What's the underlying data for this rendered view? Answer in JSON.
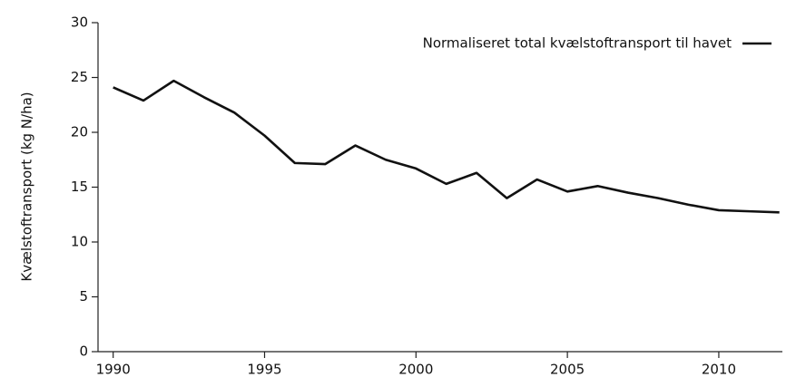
{
  "chart_data": {
    "type": "line",
    "y_label": "Kvælstoftransport (kg N/ha)",
    "x": [
      1990,
      1991,
      1992,
      1993,
      1994,
      1995,
      1996,
      1997,
      1998,
      1999,
      2000,
      2001,
      2002,
      2003,
      2004,
      2005,
      2006,
      2007,
      2008,
      2009,
      2010,
      2011,
      2012
    ],
    "series": [
      {
        "name": "Normaliseret total kvælstoftransport til havet",
        "color": "#111111",
        "values": [
          24.1,
          22.9,
          24.7,
          23.2,
          21.8,
          19.7,
          17.2,
          17.1,
          18.8,
          17.5,
          16.7,
          15.3,
          16.3,
          14.0,
          15.7,
          14.6,
          15.1,
          14.5,
          14.0,
          13.4,
          12.9,
          12.8,
          12.7
        ]
      }
    ],
    "xlim": [
      1989.5,
      2012.1
    ],
    "xticks": [
      1990,
      1995,
      2000,
      2005,
      2010
    ],
    "ylim": [
      0,
      30
    ],
    "yticks": [
      0,
      5,
      10,
      15,
      20,
      25,
      30
    ],
    "legend": "upper right",
    "grid": false
  }
}
